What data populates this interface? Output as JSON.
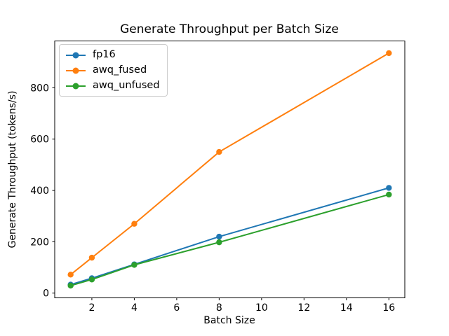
{
  "chart_data": {
    "type": "line",
    "title": "Generate Throughput per Batch Size",
    "xlabel": "Batch Size",
    "ylabel": "Generate Throughput (tokens/s)",
    "x": [
      1,
      2,
      4,
      8,
      16
    ],
    "series": [
      {
        "name": "fp16",
        "color": "#1f77b4",
        "values": [
          33,
          58,
          112,
          220,
          410
        ]
      },
      {
        "name": "awq_fused",
        "color": "#ff7f0e",
        "values": [
          72,
          138,
          270,
          550,
          935
        ]
      },
      {
        "name": "awq_unfused",
        "color": "#2ca02c",
        "values": [
          29,
          53,
          110,
          198,
          384
        ]
      }
    ],
    "xlim": [
      0.25,
      16.75
    ],
    "ylim": [
      -18.5,
      982.5
    ],
    "xticks": [
      2,
      4,
      6,
      8,
      10,
      12,
      14,
      16
    ],
    "yticks": [
      0,
      200,
      400,
      600,
      800
    ],
    "grid": false,
    "marker": "circle",
    "line_width": 2,
    "marker_radius": 4.2,
    "axis_color": "#000000",
    "background_color": "#ffffff",
    "legend": {
      "position": "upper-left",
      "border_color": "#cccccc",
      "entries": [
        "fp16",
        "awq_fused",
        "awq_unfused"
      ]
    }
  }
}
